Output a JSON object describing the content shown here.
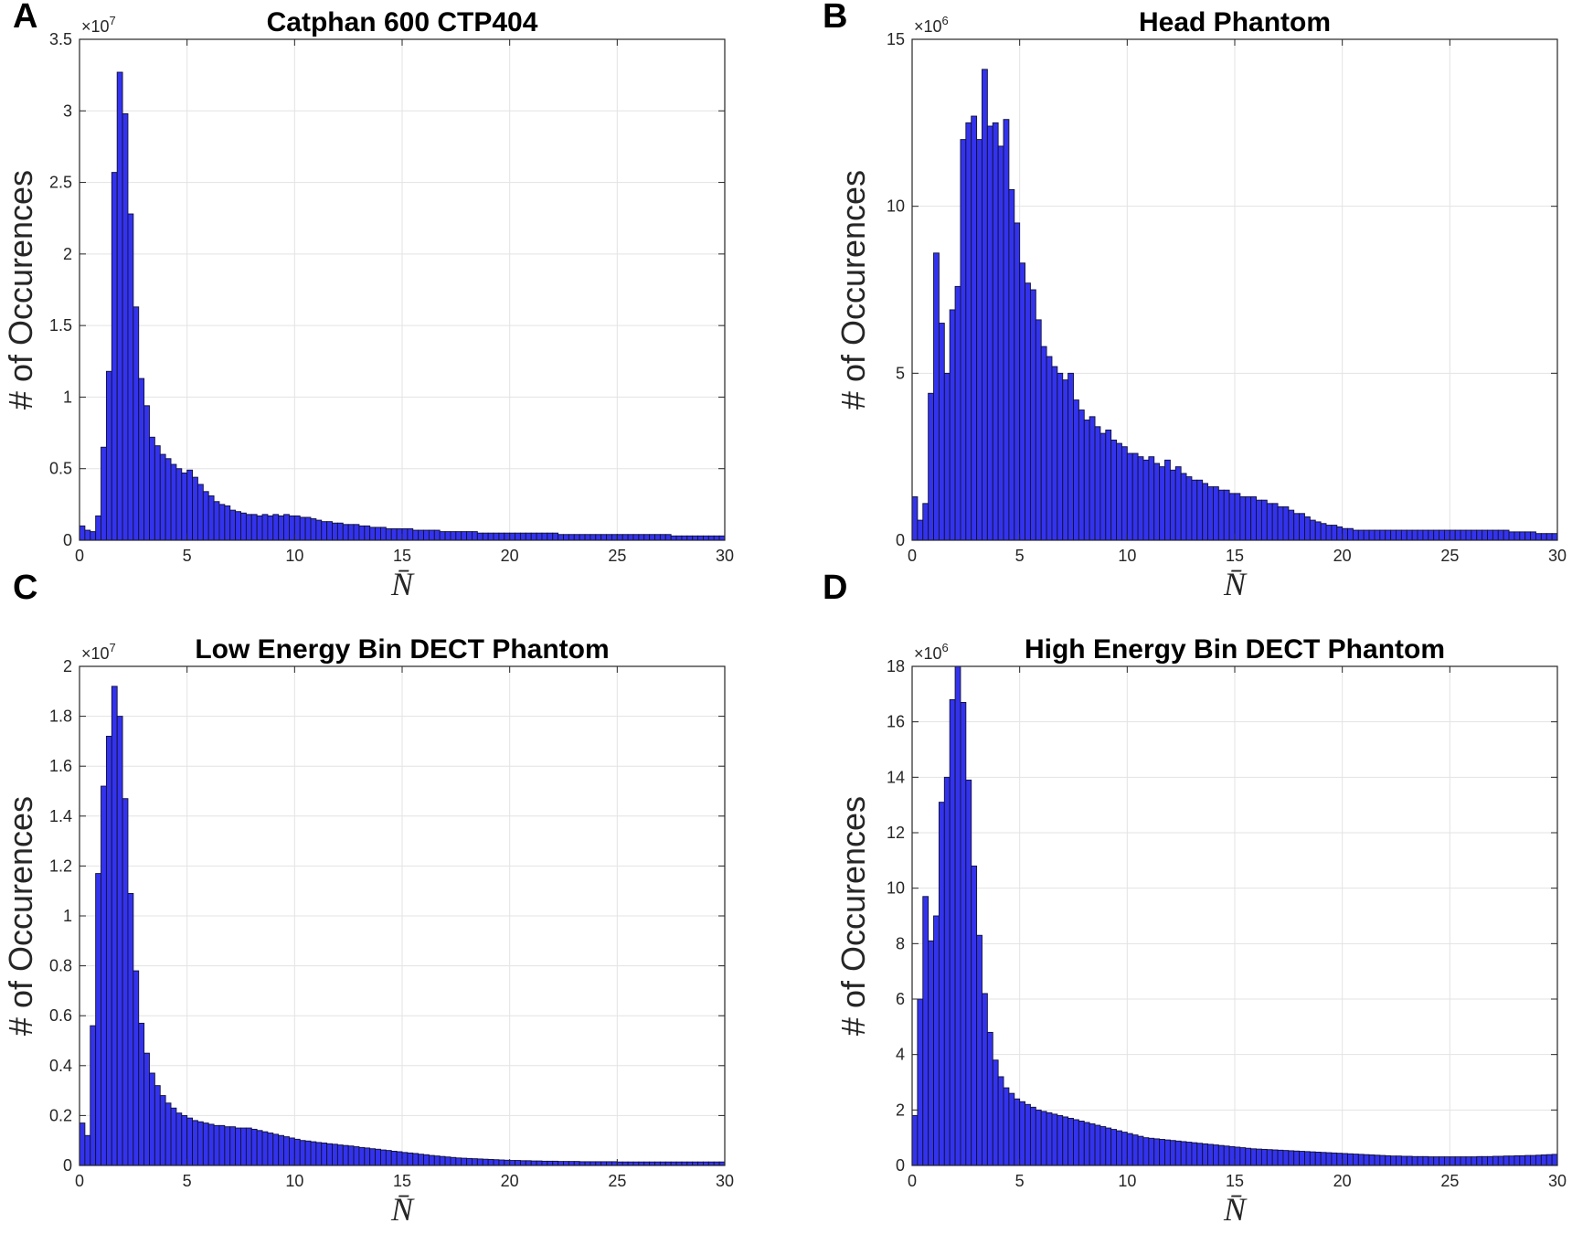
{
  "chart_data": [
    {
      "type": "bar",
      "panel": "A",
      "title": "Catphan 600 CTP404",
      "xlabel": "N̄",
      "ylabel": "# of Occurences",
      "xlim": [
        0,
        30
      ],
      "ylim": [
        0,
        3.5
      ],
      "y_multiplier": "×10",
      "y_exponent": "7",
      "xticks": [
        "0",
        "5",
        "10",
        "15",
        "20",
        "25",
        "30"
      ],
      "yticks": [
        "0",
        "0.5",
        "1",
        "1.5",
        "2",
        "2.5",
        "3",
        "3.5"
      ],
      "bin_width": 0.25,
      "values": [
        0.1,
        0.07,
        0.06,
        0.17,
        0.65,
        1.18,
        2.57,
        3.27,
        2.98,
        2.28,
        1.63,
        1.13,
        0.94,
        0.72,
        0.66,
        0.6,
        0.57,
        0.53,
        0.5,
        0.47,
        0.49,
        0.44,
        0.39,
        0.34,
        0.31,
        0.27,
        0.25,
        0.24,
        0.21,
        0.2,
        0.19,
        0.18,
        0.18,
        0.17,
        0.18,
        0.17,
        0.18,
        0.17,
        0.18,
        0.17,
        0.17,
        0.16,
        0.16,
        0.15,
        0.14,
        0.13,
        0.13,
        0.12,
        0.12,
        0.11,
        0.11,
        0.11,
        0.1,
        0.1,
        0.09,
        0.09,
        0.09,
        0.08,
        0.08,
        0.08,
        0.08,
        0.08,
        0.07,
        0.07,
        0.07,
        0.07,
        0.07,
        0.06,
        0.06,
        0.06,
        0.06,
        0.06,
        0.06,
        0.06,
        0.05,
        0.05,
        0.05,
        0.05,
        0.05,
        0.05,
        0.05,
        0.05,
        0.05,
        0.05,
        0.05,
        0.05,
        0.05,
        0.05,
        0.05,
        0.04,
        0.04,
        0.04,
        0.04,
        0.04,
        0.04,
        0.04,
        0.04,
        0.04,
        0.04,
        0.04,
        0.04,
        0.04,
        0.04,
        0.04,
        0.04,
        0.04,
        0.04,
        0.04,
        0.04,
        0.04,
        0.03,
        0.03,
        0.03,
        0.03,
        0.03,
        0.03,
        0.03,
        0.03,
        0.03,
        0.03
      ]
    },
    {
      "type": "bar",
      "panel": "B",
      "title": "Head Phantom",
      "xlabel": "N̄",
      "ylabel": "# of Occurences",
      "xlim": [
        0,
        30
      ],
      "ylim": [
        0,
        15
      ],
      "y_multiplier": "×10",
      "y_exponent": "6",
      "xticks": [
        "0",
        "5",
        "10",
        "15",
        "20",
        "25",
        "30"
      ],
      "yticks": [
        "0",
        "5",
        "10",
        "15"
      ],
      "bin_width": 0.25,
      "values": [
        1.3,
        0.6,
        1.1,
        4.4,
        8.6,
        6.5,
        5.0,
        6.9,
        7.6,
        12.0,
        12.5,
        12.7,
        12.0,
        14.1,
        12.4,
        12.5,
        11.8,
        12.6,
        10.5,
        9.5,
        8.3,
        7.7,
        7.5,
        6.6,
        5.8,
        5.5,
        5.2,
        5.0,
        4.8,
        5.0,
        4.2,
        3.9,
        3.6,
        3.7,
        3.4,
        3.2,
        3.3,
        3.0,
        2.9,
        2.8,
        2.6,
        2.6,
        2.5,
        2.4,
        2.5,
        2.3,
        2.2,
        2.4,
        2.1,
        2.2,
        2.0,
        1.9,
        1.8,
        1.8,
        1.7,
        1.6,
        1.6,
        1.5,
        1.5,
        1.4,
        1.4,
        1.3,
        1.3,
        1.3,
        1.2,
        1.2,
        1.1,
        1.1,
        1.0,
        1.0,
        0.9,
        0.8,
        0.8,
        0.7,
        0.6,
        0.55,
        0.5,
        0.45,
        0.45,
        0.4,
        0.35,
        0.35,
        0.3,
        0.3,
        0.3,
        0.3,
        0.3,
        0.3,
        0.3,
        0.3,
        0.3,
        0.3,
        0.3,
        0.3,
        0.3,
        0.3,
        0.3,
        0.3,
        0.3,
        0.3,
        0.3,
        0.3,
        0.3,
        0.3,
        0.3,
        0.3,
        0.3,
        0.3,
        0.3,
        0.3,
        0.3,
        0.25,
        0.25,
        0.25,
        0.25,
        0.25,
        0.2,
        0.2,
        0.2,
        0.2
      ]
    },
    {
      "type": "bar",
      "panel": "C",
      "title": "Low Energy Bin DECT Phantom",
      "xlabel": "N̄",
      "ylabel": "# of Occurences",
      "xlim": [
        0,
        30
      ],
      "ylim": [
        0,
        2
      ],
      "y_multiplier": "×10",
      "y_exponent": "7",
      "xticks": [
        "0",
        "5",
        "10",
        "15",
        "20",
        "25",
        "30"
      ],
      "yticks": [
        "0",
        "0.2",
        "0.4",
        "0.6",
        "0.8",
        "1",
        "1.2",
        "1.4",
        "1.6",
        "1.8",
        "2"
      ],
      "bin_width": 0.25,
      "values": [
        0.17,
        0.12,
        0.56,
        1.17,
        1.52,
        1.72,
        1.92,
        1.8,
        1.47,
        1.09,
        0.78,
        0.57,
        0.45,
        0.37,
        0.32,
        0.28,
        0.25,
        0.23,
        0.21,
        0.2,
        0.19,
        0.18,
        0.175,
        0.17,
        0.165,
        0.16,
        0.16,
        0.155,
        0.155,
        0.15,
        0.15,
        0.15,
        0.145,
        0.14,
        0.135,
        0.13,
        0.125,
        0.12,
        0.115,
        0.11,
        0.105,
        0.1,
        0.098,
        0.095,
        0.092,
        0.09,
        0.087,
        0.085,
        0.082,
        0.08,
        0.078,
        0.075,
        0.072,
        0.07,
        0.067,
        0.065,
        0.062,
        0.06,
        0.057,
        0.055,
        0.052,
        0.05,
        0.048,
        0.045,
        0.043,
        0.04,
        0.038,
        0.036,
        0.034,
        0.032,
        0.03,
        0.029,
        0.028,
        0.027,
        0.026,
        0.025,
        0.024,
        0.023,
        0.022,
        0.021,
        0.02,
        0.02,
        0.019,
        0.019,
        0.018,
        0.018,
        0.017,
        0.017,
        0.017,
        0.016,
        0.016,
        0.016,
        0.016,
        0.015,
        0.015,
        0.015,
        0.015,
        0.015,
        0.015,
        0.015,
        0.014,
        0.014,
        0.014,
        0.014,
        0.014,
        0.014,
        0.014,
        0.014,
        0.014,
        0.014,
        0.014,
        0.014,
        0.014,
        0.014,
        0.014,
        0.014,
        0.014,
        0.014,
        0.014,
        0.014
      ]
    },
    {
      "type": "bar",
      "panel": "D",
      "title": "High Energy Bin DECT Phantom",
      "xlabel": "N̄",
      "ylabel": "# of Occurences",
      "xlim": [
        0,
        30
      ],
      "ylim": [
        0,
        18
      ],
      "y_multiplier": "×10",
      "y_exponent": "6",
      "xticks": [
        "0",
        "5",
        "10",
        "15",
        "20",
        "25",
        "30"
      ],
      "yticks": [
        "0",
        "2",
        "4",
        "6",
        "8",
        "10",
        "12",
        "14",
        "16",
        "18"
      ],
      "bin_width": 0.25,
      "values": [
        1.8,
        6.0,
        9.7,
        8.1,
        9.0,
        13.1,
        14.0,
        16.8,
        18.0,
        16.7,
        13.9,
        10.8,
        8.3,
        6.2,
        4.8,
        3.8,
        3.2,
        2.8,
        2.6,
        2.4,
        2.3,
        2.2,
        2.1,
        2.0,
        1.95,
        1.9,
        1.85,
        1.8,
        1.75,
        1.7,
        1.65,
        1.6,
        1.55,
        1.5,
        1.45,
        1.4,
        1.35,
        1.3,
        1.25,
        1.2,
        1.15,
        1.1,
        1.05,
        1.0,
        0.98,
        0.96,
        0.94,
        0.92,
        0.9,
        0.88,
        0.86,
        0.84,
        0.82,
        0.8,
        0.78,
        0.76,
        0.74,
        0.72,
        0.7,
        0.68,
        0.66,
        0.64,
        0.62,
        0.6,
        0.59,
        0.58,
        0.57,
        0.56,
        0.55,
        0.54,
        0.53,
        0.52,
        0.51,
        0.5,
        0.49,
        0.48,
        0.47,
        0.46,
        0.45,
        0.44,
        0.43,
        0.42,
        0.41,
        0.4,
        0.39,
        0.38,
        0.37,
        0.36,
        0.35,
        0.34,
        0.34,
        0.33,
        0.33,
        0.32,
        0.32,
        0.32,
        0.31,
        0.31,
        0.31,
        0.31,
        0.31,
        0.31,
        0.31,
        0.31,
        0.31,
        0.32,
        0.32,
        0.32,
        0.33,
        0.33,
        0.34,
        0.34,
        0.35,
        0.35,
        0.36,
        0.36,
        0.37,
        0.38,
        0.39,
        0.4
      ]
    }
  ],
  "style": {
    "bar_fill": "#3333ee",
    "bar_edge": "#111133",
    "grid_color": "#e3e3e3",
    "axis_color": "#262626"
  }
}
